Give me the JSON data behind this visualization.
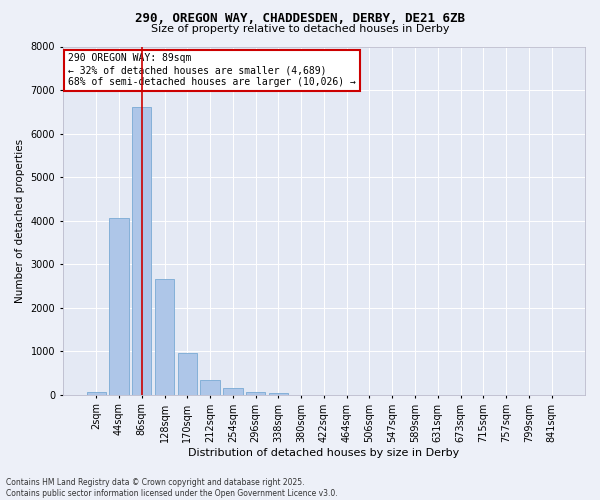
{
  "title_line1": "290, OREGON WAY, CHADDESDEN, DERBY, DE21 6ZB",
  "title_line2": "Size of property relative to detached houses in Derby",
  "xlabel": "Distribution of detached houses by size in Derby",
  "ylabel": "Number of detached properties",
  "bar_labels": [
    "2sqm",
    "44sqm",
    "86sqm",
    "128sqm",
    "170sqm",
    "212sqm",
    "254sqm",
    "296sqm",
    "338sqm",
    "380sqm",
    "422sqm",
    "464sqm",
    "506sqm",
    "547sqm",
    "589sqm",
    "631sqm",
    "673sqm",
    "715sqm",
    "757sqm",
    "799sqm",
    "841sqm"
  ],
  "bar_values": [
    60,
    4050,
    6620,
    2650,
    970,
    350,
    155,
    75,
    50,
    0,
    0,
    0,
    0,
    0,
    0,
    0,
    0,
    0,
    0,
    0,
    0
  ],
  "bar_color": "#aec6e8",
  "bar_edge_color": "#7aaad4",
  "vline_color": "#cc0000",
  "vline_index": 2,
  "ylim": [
    0,
    8000
  ],
  "yticks": [
    0,
    1000,
    2000,
    3000,
    4000,
    5000,
    6000,
    7000,
    8000
  ],
  "annotation_title": "290 OREGON WAY: 89sqm",
  "annotation_line1": "← 32% of detached houses are smaller (4,689)",
  "annotation_line2": "68% of semi-detached houses are larger (10,026) →",
  "annotation_box_color": "#cc0000",
  "footnote1": "Contains HM Land Registry data © Crown copyright and database right 2025.",
  "footnote2": "Contains public sector information licensed under the Open Government Licence v3.0.",
  "bg_color": "#edf0f8",
  "plot_bg_color": "#e4e9f4",
  "grid_color": "#ffffff",
  "title_fontsize": 9,
  "subtitle_fontsize": 8,
  "ylabel_fontsize": 7.5,
  "xlabel_fontsize": 8,
  "tick_fontsize": 7,
  "annot_fontsize": 7,
  "footnote_fontsize": 5.5
}
